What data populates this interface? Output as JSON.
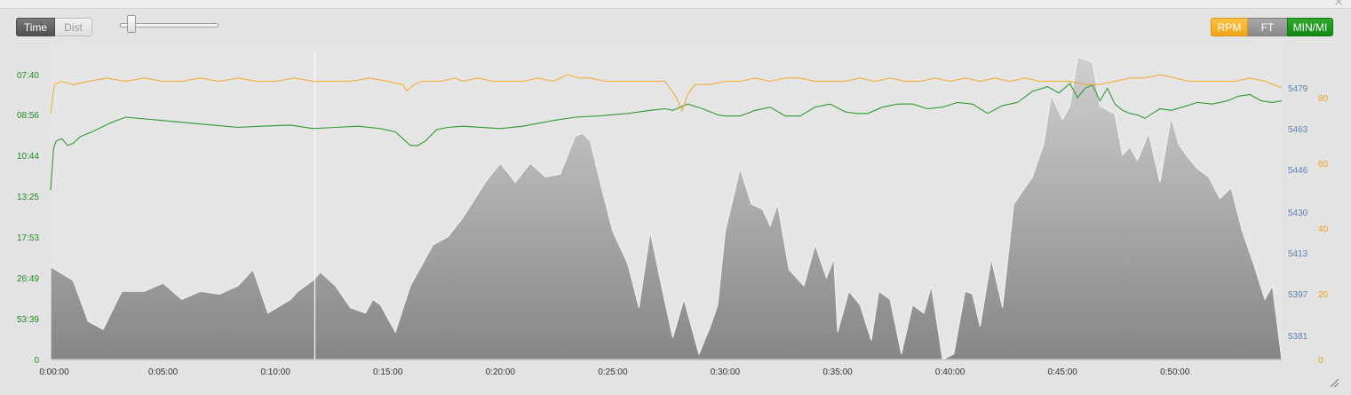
{
  "toolbar": {
    "time_label": "Time",
    "dist_label": "Dist",
    "zoom_level": 0.1,
    "units": [
      {
        "label": "RPM",
        "color": "#f0a31a"
      },
      {
        "label": "FT",
        "color": "#8a8a8a"
      },
      {
        "label": "MIN/MI",
        "color": "#138a13"
      }
    ]
  },
  "chart_data": {
    "type": "line",
    "x_axis": {
      "ticks": [
        "0:00:00",
        "0:05:00",
        "0:10:00",
        "0:15:00",
        "0:20:00",
        "0:25:00",
        "0:30:00",
        "0:35:00",
        "0:40:00",
        "0:45:00",
        "0:50:00"
      ],
      "range_seconds": [
        0,
        3285
      ]
    },
    "left_axis": {
      "name": "pace (min/mi)",
      "color": "#1e8b1e",
      "ticks": [
        "07:40",
        "08:56",
        "10:44",
        "13:25",
        "17:53",
        "26:49",
        "53:39",
        "0"
      ]
    },
    "right_axis_elevation": {
      "color": "#5b82b0",
      "ticks": [
        5479,
        5463,
        5446,
        5430,
        5413,
        5397,
        5381
      ],
      "ylim": [
        5373,
        5486
      ]
    },
    "right_axis_cadence": {
      "color": "#f0a31a",
      "ticks": [
        80,
        60,
        40,
        20,
        0
      ],
      "ylim": [
        0,
        90
      ]
    },
    "marker_time_s": 705,
    "series": [
      {
        "key": "elevation",
        "label": "FT",
        "style": "area",
        "color": "#8f8f8f",
        "x": [
          0,
          60,
          100,
          140,
          190,
          250,
          300,
          350,
          400,
          450,
          500,
          540,
          580,
          640,
          660,
          700,
          720,
          760,
          800,
          840,
          860,
          880,
          920,
          960,
          1020,
          1060,
          1100,
          1160,
          1200,
          1240,
          1280,
          1320,
          1360,
          1380,
          1400,
          1420,
          1440,
          1470,
          1500,
          1540,
          1570,
          1600,
          1630,
          1660,
          1690,
          1730,
          1760,
          1780,
          1800,
          1840,
          1870,
          1900,
          1920,
          1940,
          1970,
          2010,
          2040,
          2070,
          2090,
          2100,
          2130,
          2160,
          2190,
          2210,
          2240,
          2270,
          2300,
          2330,
          2350,
          2380,
          2410,
          2440,
          2460,
          2480,
          2510,
          2540,
          2570,
          2600,
          2620,
          2650,
          2670,
          2700,
          2720,
          2740,
          2780,
          2800,
          2840,
          2860,
          2880,
          2900,
          2930,
          2960,
          2990,
          3010,
          3030,
          3060,
          3090,
          3120,
          3150,
          3180,
          3210,
          3240,
          3260,
          3285
        ],
        "y": [
          5407,
          5402,
          5387,
          5384,
          5398,
          5398,
          5401,
          5395,
          5398,
          5397,
          5400,
          5406,
          5390,
          5395,
          5398,
          5402,
          5405,
          5400,
          5392,
          5390,
          5395,
          5393,
          5383,
          5400,
          5415,
          5418,
          5425,
          5438,
          5445,
          5438,
          5445,
          5440,
          5441,
          5448,
          5455,
          5456,
          5453,
          5436,
          5420,
          5408,
          5392,
          5420,
          5400,
          5381,
          5395,
          5375,
          5385,
          5393,
          5420,
          5443,
          5430,
          5428,
          5422,
          5430,
          5406,
          5400,
          5415,
          5403,
          5410,
          5383,
          5398,
          5393,
          5380,
          5398,
          5395,
          5375,
          5393,
          5390,
          5400,
          5373,
          5375,
          5398,
          5397,
          5385,
          5410,
          5392,
          5430,
          5436,
          5440,
          5452,
          5470,
          5461,
          5466,
          5484,
          5482,
          5466,
          5463,
          5448,
          5451,
          5446,
          5456,
          5438,
          5462,
          5452,
          5448,
          5443,
          5440,
          5432,
          5436,
          5420,
          5408,
          5395,
          5400,
          5373
        ]
      },
      {
        "key": "pace",
        "label": "MIN/MI",
        "style": "line",
        "color": "#2e9a2e",
        "x": [
          0,
          8,
          15,
          30,
          45,
          60,
          80,
          110,
          160,
          200,
          300,
          400,
          500,
          560,
          640,
          700,
          760,
          820,
          880,
          920,
          960,
          980,
          1000,
          1030,
          1060,
          1100,
          1200,
          1260,
          1340,
          1400,
          1460,
          1540,
          1600,
          1640,
          1660,
          1700,
          1740,
          1780,
          1800,
          1840,
          1880,
          1920,
          1960,
          2000,
          2040,
          2080,
          2120,
          2150,
          2180,
          2220,
          2260,
          2300,
          2340,
          2380,
          2420,
          2460,
          2500,
          2540,
          2580,
          2620,
          2660,
          2690,
          2720,
          2740,
          2760,
          2780,
          2800,
          2820,
          2840,
          2860,
          2880,
          2900,
          2920,
          2940,
          2960,
          2990,
          3020,
          3060,
          3100,
          3140,
          3170,
          3200,
          3230,
          3260,
          3285
        ],
        "y": [
          13.0,
          10.4,
          10.1,
          10.0,
          10.3,
          10.2,
          9.9,
          9.7,
          9.3,
          9.05,
          9.2,
          9.35,
          9.5,
          9.45,
          9.4,
          9.55,
          9.5,
          9.45,
          9.55,
          9.7,
          10.3,
          10.3,
          10.1,
          9.6,
          9.5,
          9.45,
          9.55,
          9.45,
          9.2,
          9.05,
          9.0,
          8.9,
          8.8,
          8.75,
          8.8,
          8.6,
          8.75,
          8.95,
          9.0,
          9.0,
          8.8,
          8.7,
          9.0,
          9.0,
          8.7,
          8.6,
          8.85,
          8.9,
          8.9,
          8.7,
          8.6,
          8.6,
          8.75,
          8.7,
          8.55,
          8.6,
          8.9,
          8.65,
          8.55,
          8.2,
          8.05,
          8.25,
          7.95,
          8.4,
          8.1,
          8.0,
          8.5,
          8.1,
          8.6,
          8.8,
          8.9,
          8.95,
          9.1,
          8.9,
          8.75,
          8.8,
          8.7,
          8.55,
          8.6,
          8.5,
          8.35,
          8.3,
          8.5,
          8.55,
          8.5
        ]
      },
      {
        "key": "cadence",
        "label": "RPM",
        "style": "line",
        "color": "#f4a62a",
        "x": [
          0,
          10,
          30,
          60,
          100,
          150,
          200,
          250,
          300,
          350,
          400,
          450,
          500,
          550,
          600,
          650,
          700,
          750,
          800,
          850,
          900,
          940,
          950,
          970,
          990,
          1000,
          1040,
          1080,
          1100,
          1140,
          1180,
          1220,
          1260,
          1300,
          1340,
          1380,
          1410,
          1440,
          1480,
          1520,
          1560,
          1600,
          1640,
          1670,
          1685,
          1700,
          1720,
          1760,
          1800,
          1840,
          1880,
          1920,
          1960,
          2000,
          2040,
          2080,
          2120,
          2160,
          2200,
          2240,
          2280,
          2320,
          2360,
          2400,
          2440,
          2480,
          2520,
          2560,
          2600,
          2640,
          2680,
          2720,
          2760,
          2800,
          2840,
          2880,
          2920,
          2960,
          3000,
          3040,
          3080,
          3120,
          3160,
          3200,
          3240,
          3285
        ],
        "y": [
          75,
          84,
          85,
          84,
          85,
          86,
          85,
          86,
          85,
          85,
          86,
          85,
          86,
          85,
          85,
          86,
          85,
          85,
          85,
          86,
          85,
          84,
          82,
          84,
          85,
          85,
          85,
          86,
          85,
          86,
          85,
          85,
          85,
          86,
          85,
          87,
          86,
          86,
          85,
          85,
          85,
          85,
          85,
          80,
          76,
          81,
          84,
          84,
          85,
          85,
          86,
          85,
          86,
          86,
          85,
          85,
          85,
          86,
          85,
          86,
          85,
          85,
          86,
          85,
          86,
          85,
          86,
          85,
          86,
          85,
          85,
          85,
          84,
          84,
          85,
          86,
          86,
          87,
          86,
          85,
          85,
          85,
          85,
          86,
          85,
          83
        ]
      }
    ]
  }
}
